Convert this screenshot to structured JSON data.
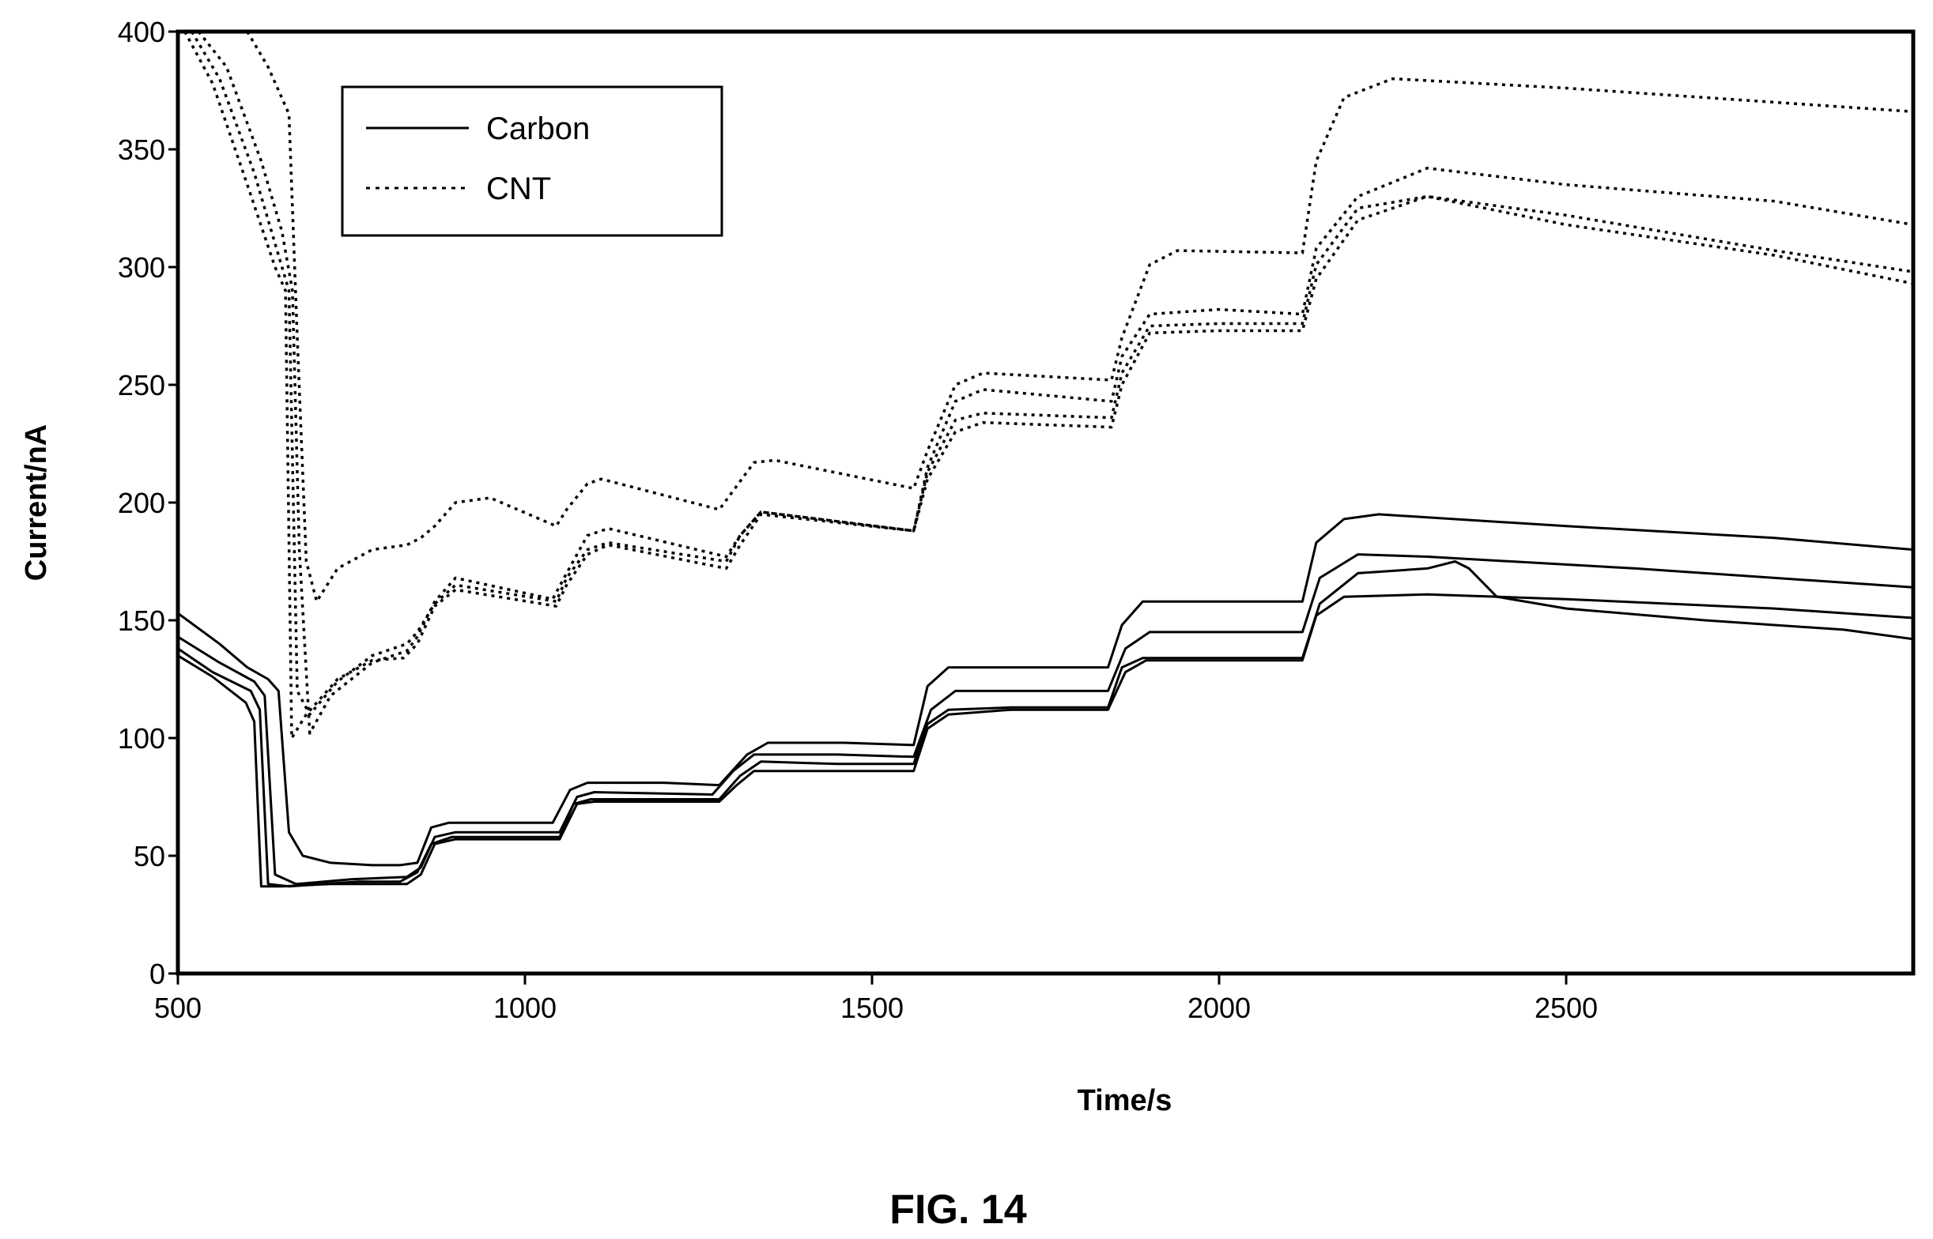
{
  "chart_data": {
    "type": "line",
    "xlabel": "Time/s",
    "ylabel": "Current/nA",
    "xlim": [
      500,
      3000
    ],
    "ylim": [
      0,
      400
    ],
    "xticks": [
      500,
      1000,
      1500,
      2000,
      2500
    ],
    "yticks": [
      0,
      50,
      100,
      150,
      200,
      250,
      300,
      350,
      400
    ],
    "grid": false,
    "legend_position": "top-left",
    "legend": [
      {
        "label": "Carbon",
        "style": "solid"
      },
      {
        "label": "CNT",
        "style": "dotted"
      }
    ],
    "series": [
      {
        "name": "Carbon",
        "style": "solid",
        "points": [
          [
            500,
            153
          ],
          [
            560,
            140
          ],
          [
            600,
            130
          ],
          [
            630,
            125
          ],
          [
            645,
            120
          ],
          [
            660,
            60
          ],
          [
            680,
            50
          ],
          [
            720,
            47
          ],
          [
            780,
            46
          ],
          [
            820,
            46
          ],
          [
            845,
            47
          ],
          [
            865,
            62
          ],
          [
            890,
            64
          ],
          [
            1000,
            64
          ],
          [
            1040,
            64
          ],
          [
            1065,
            78
          ],
          [
            1090,
            81
          ],
          [
            1200,
            81
          ],
          [
            1280,
            80
          ],
          [
            1320,
            93
          ],
          [
            1350,
            98
          ],
          [
            1460,
            98
          ],
          [
            1560,
            97
          ],
          [
            1580,
            122
          ],
          [
            1610,
            130
          ],
          [
            1700,
            130
          ],
          [
            1840,
            130
          ],
          [
            1860,
            148
          ],
          [
            1890,
            158
          ],
          [
            1980,
            158
          ],
          [
            2120,
            158
          ],
          [
            2140,
            183
          ],
          [
            2180,
            193
          ],
          [
            2230,
            195
          ],
          [
            2500,
            190
          ],
          [
            2800,
            185
          ],
          [
            3000,
            180
          ]
        ]
      },
      {
        "name": "Carbon",
        "style": "solid",
        "points": [
          [
            500,
            143
          ],
          [
            560,
            132
          ],
          [
            610,
            124
          ],
          [
            625,
            118
          ],
          [
            640,
            42
          ],
          [
            670,
            38
          ],
          [
            750,
            40
          ],
          [
            830,
            41
          ],
          [
            850,
            45
          ],
          [
            870,
            58
          ],
          [
            900,
            60
          ],
          [
            1000,
            60
          ],
          [
            1050,
            60
          ],
          [
            1075,
            75
          ],
          [
            1100,
            77
          ],
          [
            1270,
            76
          ],
          [
            1300,
            86
          ],
          [
            1330,
            93
          ],
          [
            1450,
            93
          ],
          [
            1560,
            92
          ],
          [
            1585,
            112
          ],
          [
            1620,
            120
          ],
          [
            1700,
            120
          ],
          [
            1840,
            120
          ],
          [
            1865,
            138
          ],
          [
            1900,
            145
          ],
          [
            2000,
            145
          ],
          [
            2120,
            145
          ],
          [
            2145,
            168
          ],
          [
            2200,
            178
          ],
          [
            2300,
            177
          ],
          [
            2600,
            172
          ],
          [
            3000,
            164
          ]
        ]
      },
      {
        "name": "Carbon",
        "style": "solid",
        "points": [
          [
            500,
            138
          ],
          [
            550,
            128
          ],
          [
            605,
            120
          ],
          [
            618,
            112
          ],
          [
            630,
            38
          ],
          [
            660,
            37
          ],
          [
            760,
            39
          ],
          [
            820,
            39
          ],
          [
            845,
            43
          ],
          [
            865,
            55
          ],
          [
            895,
            58
          ],
          [
            1000,
            58
          ],
          [
            1050,
            58
          ],
          [
            1070,
            72
          ],
          [
            1095,
            74
          ],
          [
            1280,
            74
          ],
          [
            1310,
            84
          ],
          [
            1340,
            90
          ],
          [
            1450,
            89
          ],
          [
            1560,
            89
          ],
          [
            1580,
            106
          ],
          [
            1610,
            112
          ],
          [
            1700,
            113
          ],
          [
            1840,
            113
          ],
          [
            1860,
            130
          ],
          [
            1890,
            134
          ],
          [
            2000,
            134
          ],
          [
            2120,
            134
          ],
          [
            2145,
            157
          ],
          [
            2200,
            170
          ],
          [
            2300,
            172
          ],
          [
            2340,
            175
          ],
          [
            2360,
            172
          ],
          [
            2400,
            160
          ],
          [
            2500,
            155
          ],
          [
            2700,
            150
          ],
          [
            2800,
            148
          ],
          [
            2900,
            146
          ],
          [
            3000,
            142
          ]
        ]
      },
      {
        "name": "Carbon",
        "style": "solid",
        "points": [
          [
            500,
            135
          ],
          [
            550,
            126
          ],
          [
            598,
            115
          ],
          [
            610,
            107
          ],
          [
            620,
            37
          ],
          [
            650,
            37
          ],
          [
            720,
            38
          ],
          [
            830,
            38
          ],
          [
            850,
            42
          ],
          [
            870,
            55
          ],
          [
            900,
            57
          ],
          [
            1000,
            57
          ],
          [
            1050,
            57
          ],
          [
            1075,
            72
          ],
          [
            1100,
            73
          ],
          [
            1280,
            73
          ],
          [
            1305,
            80
          ],
          [
            1330,
            86
          ],
          [
            1460,
            86
          ],
          [
            1560,
            86
          ],
          [
            1580,
            104
          ],
          [
            1610,
            110
          ],
          [
            1700,
            112
          ],
          [
            1840,
            112
          ],
          [
            1865,
            128
          ],
          [
            1895,
            133
          ],
          [
            2000,
            133
          ],
          [
            2120,
            133
          ],
          [
            2140,
            152
          ],
          [
            2180,
            160
          ],
          [
            2300,
            161
          ],
          [
            2500,
            159
          ],
          [
            2800,
            155
          ],
          [
            3000,
            151
          ]
        ]
      },
      {
        "name": "CNT",
        "style": "dotted",
        "points": [
          [
            600,
            400
          ],
          [
            630,
            385
          ],
          [
            660,
            365
          ],
          [
            672,
            270
          ],
          [
            685,
            175
          ],
          [
            700,
            158
          ],
          [
            730,
            172
          ],
          [
            780,
            180
          ],
          [
            830,
            182
          ],
          [
            850,
            185
          ],
          [
            870,
            190
          ],
          [
            900,
            200
          ],
          [
            950,
            202
          ],
          [
            1045,
            190
          ],
          [
            1060,
            197
          ],
          [
            1090,
            208
          ],
          [
            1110,
            210
          ],
          [
            1280,
            197
          ],
          [
            1300,
            205
          ],
          [
            1330,
            217
          ],
          [
            1360,
            218
          ],
          [
            1560,
            206
          ],
          [
            1580,
            222
          ],
          [
            1620,
            250
          ],
          [
            1660,
            255
          ],
          [
            1845,
            252
          ],
          [
            1860,
            270
          ],
          [
            1900,
            301
          ],
          [
            1940,
            307
          ],
          [
            2120,
            306
          ],
          [
            2140,
            345
          ],
          [
            2180,
            372
          ],
          [
            2250,
            380
          ],
          [
            2500,
            376
          ],
          [
            2800,
            370
          ],
          [
            3000,
            366
          ]
        ]
      },
      {
        "name": "CNT",
        "style": "dotted",
        "points": [
          [
            530,
            400
          ],
          [
            570,
            385
          ],
          [
            620,
            345
          ],
          [
            650,
            315
          ],
          [
            665,
            290
          ],
          [
            675,
            180
          ],
          [
            690,
            102
          ],
          [
            720,
            118
          ],
          [
            780,
            132
          ],
          [
            830,
            137
          ],
          [
            845,
            143
          ],
          [
            870,
            158
          ],
          [
            900,
            168
          ],
          [
            1040,
            159
          ],
          [
            1060,
            170
          ],
          [
            1090,
            186
          ],
          [
            1120,
            189
          ],
          [
            1290,
            177
          ],
          [
            1310,
            186
          ],
          [
            1340,
            196
          ],
          [
            1560,
            188
          ],
          [
            1580,
            215
          ],
          [
            1620,
            243
          ],
          [
            1660,
            248
          ],
          [
            1845,
            243
          ],
          [
            1860,
            262
          ],
          [
            1900,
            280
          ],
          [
            2000,
            282
          ],
          [
            2120,
            280
          ],
          [
            2140,
            308
          ],
          [
            2200,
            330
          ],
          [
            2300,
            342
          ],
          [
            2500,
            335
          ],
          [
            2800,
            328
          ],
          [
            3000,
            318
          ]
        ]
      },
      {
        "name": "CNT",
        "style": "dotted",
        "points": [
          [
            520,
            400
          ],
          [
            560,
            380
          ],
          [
            610,
            340
          ],
          [
            645,
            305
          ],
          [
            660,
            290
          ],
          [
            672,
            120
          ],
          [
            690,
            110
          ],
          [
            730,
            124
          ],
          [
            780,
            135
          ],
          [
            830,
            140
          ],
          [
            845,
            145
          ],
          [
            870,
            157
          ],
          [
            900,
            165
          ],
          [
            1045,
            158
          ],
          [
            1060,
            168
          ],
          [
            1090,
            180
          ],
          [
            1120,
            183
          ],
          [
            1290,
            175
          ],
          [
            1310,
            186
          ],
          [
            1340,
            196
          ],
          [
            1560,
            188
          ],
          [
            1580,
            213
          ],
          [
            1620,
            235
          ],
          [
            1660,
            238
          ],
          [
            1845,
            236
          ],
          [
            1860,
            255
          ],
          [
            1900,
            275
          ],
          [
            2000,
            276
          ],
          [
            2120,
            276
          ],
          [
            2140,
            301
          ],
          [
            2200,
            325
          ],
          [
            2300,
            330
          ],
          [
            2500,
            322
          ],
          [
            2800,
            307
          ],
          [
            3000,
            298
          ]
        ]
      },
      {
        "name": "CNT",
        "style": "dotted",
        "points": [
          [
            510,
            400
          ],
          [
            550,
            378
          ],
          [
            600,
            335
          ],
          [
            640,
            300
          ],
          [
            655,
            290
          ],
          [
            664,
            100
          ],
          [
            685,
            110
          ],
          [
            730,
            125
          ],
          [
            780,
            133
          ],
          [
            825,
            134
          ],
          [
            845,
            140
          ],
          [
            870,
            156
          ],
          [
            900,
            163
          ],
          [
            1045,
            156
          ],
          [
            1060,
            165
          ],
          [
            1090,
            178
          ],
          [
            1120,
            182
          ],
          [
            1290,
            172
          ],
          [
            1310,
            182
          ],
          [
            1340,
            195
          ],
          [
            1560,
            188
          ],
          [
            1580,
            210
          ],
          [
            1620,
            230
          ],
          [
            1660,
            234
          ],
          [
            1845,
            232
          ],
          [
            1860,
            250
          ],
          [
            1900,
            272
          ],
          [
            2000,
            273
          ],
          [
            2120,
            273
          ],
          [
            2140,
            295
          ],
          [
            2200,
            320
          ],
          [
            2300,
            330
          ],
          [
            2500,
            318
          ],
          [
            2800,
            305
          ],
          [
            3000,
            293
          ]
        ]
      }
    ]
  },
  "figure_caption": "FIG. 14"
}
